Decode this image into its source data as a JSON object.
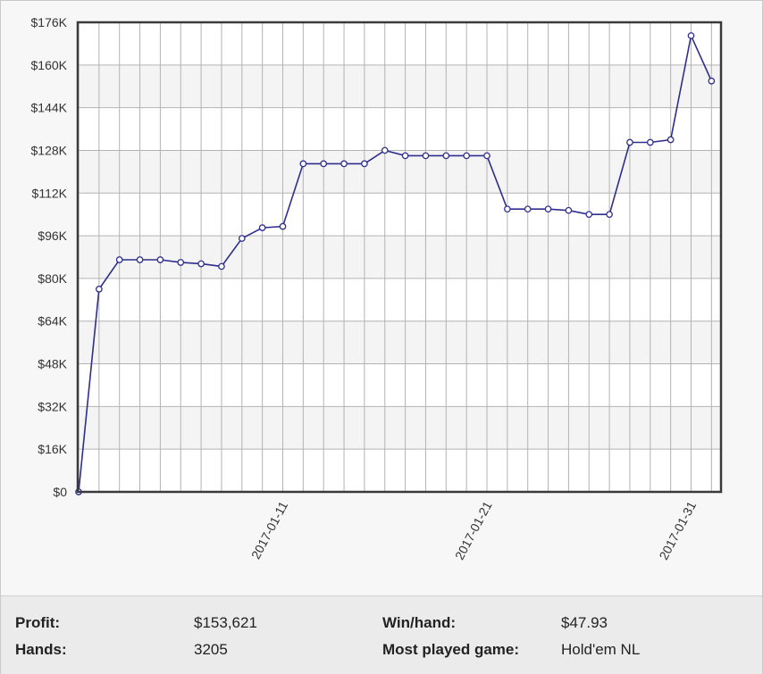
{
  "chart_data": {
    "type": "line",
    "x_ticks": [
      "2017-01-11",
      "2017-01-21",
      "2017-01-31"
    ],
    "x_tick_indices": [
      10,
      20,
      30
    ],
    "y_ticks": [
      "$0",
      "$16K",
      "$32K",
      "$48K",
      "$64K",
      "$80K",
      "$96K",
      "$112K",
      "$128K",
      "$144K",
      "$160K",
      "$176K"
    ],
    "ylim": [
      0,
      176000
    ],
    "grid": true,
    "series": [
      {
        "color": "#2e2e8c",
        "values": [
          0,
          76000,
          87000,
          87000,
          87000,
          86000,
          85500,
          84500,
          95000,
          99000,
          99500,
          123000,
          123000,
          123000,
          123000,
          128000,
          126000,
          126000,
          126000,
          126000,
          126000,
          106000,
          106000,
          106000,
          105500,
          104000,
          104000,
          131000,
          131000,
          132000,
          171000,
          154000
        ]
      }
    ],
    "title": "",
    "xlabel": "",
    "ylabel": ""
  },
  "stats": {
    "profit_label": "Profit:",
    "profit_value": "$153,621",
    "hands_label": "Hands:",
    "hands_value": "3205",
    "winhand_label": "Win/hand:",
    "winhand_value": "$47.93",
    "game_label": "Most played game:",
    "game_value": "Hold'em NL"
  }
}
